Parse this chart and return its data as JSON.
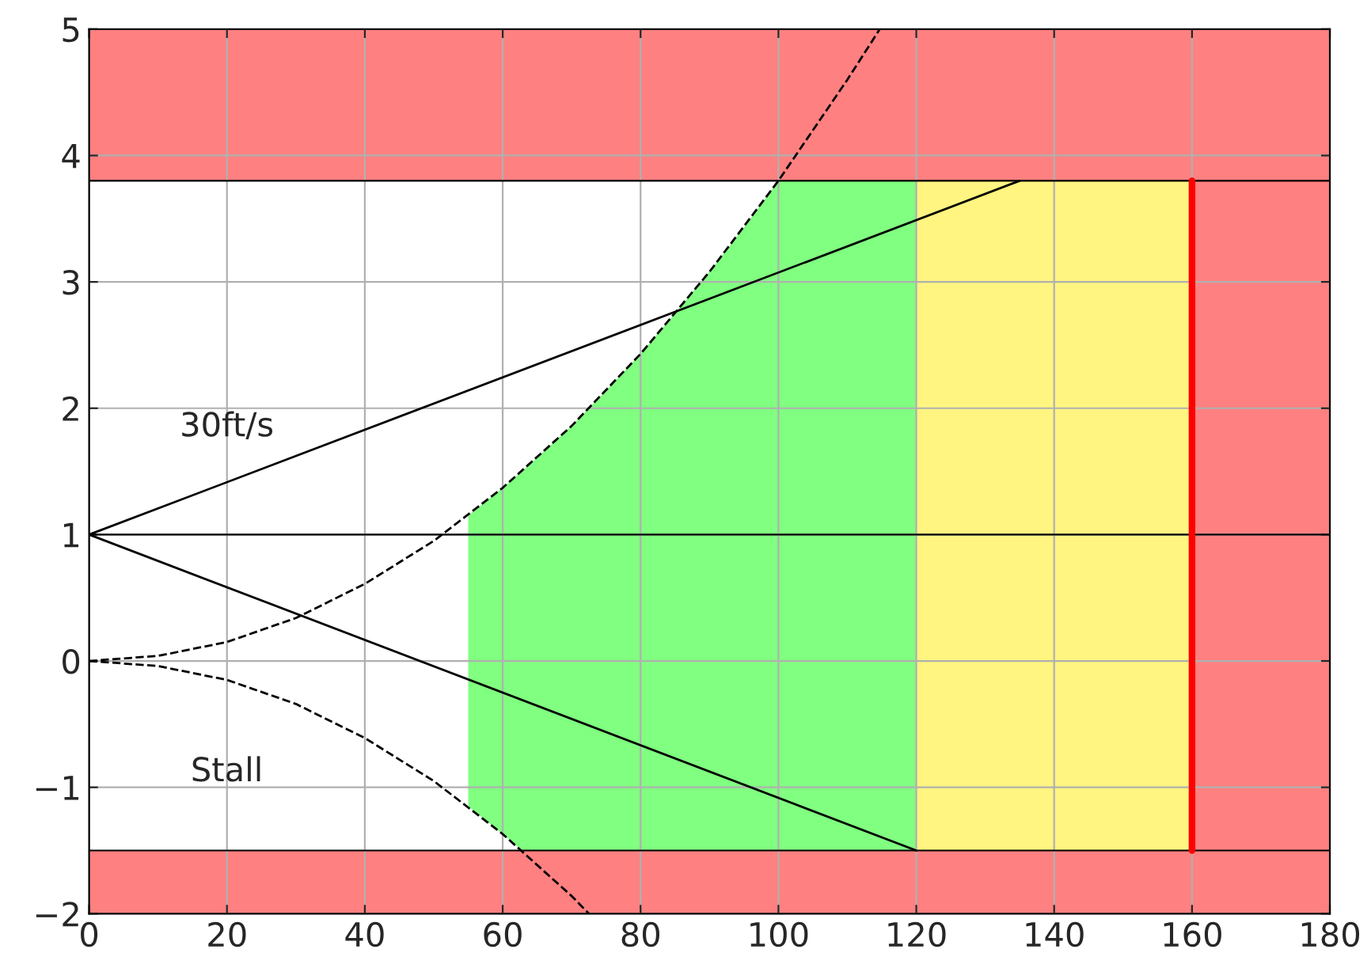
{
  "chart_data": {
    "type": "area",
    "xlim": [
      0,
      180
    ],
    "ylim": [
      -2,
      5
    ],
    "xticks": [
      0,
      20,
      40,
      60,
      80,
      100,
      120,
      140,
      160,
      180
    ],
    "yticks": [
      {
        "value": -2,
        "label": "−2"
      },
      {
        "value": -1,
        "label": "−1"
      },
      0,
      1,
      2,
      3,
      4,
      5
    ],
    "grid": true,
    "bands": [
      {
        "axis": "x",
        "from": 120,
        "to": 160,
        "color": "#fff580"
      },
      {
        "axis": "x",
        "from": 160,
        "to": 180,
        "color": "#ff8080"
      },
      {
        "axis": "y",
        "from": 3.8,
        "to": 5,
        "color": "#ff8080"
      },
      {
        "axis": "y",
        "from": -2,
        "to": -1.5,
        "color": "#ff8080"
      }
    ],
    "ref_lines": [
      {
        "axis": "y",
        "value": 1,
        "color": "#000000",
        "line_style": "solid"
      },
      {
        "axis": "y",
        "value": 3.8,
        "color": "#000000",
        "line_style": "solid"
      },
      {
        "axis": "y",
        "value": -1.5,
        "color": "#000000",
        "line_style": "solid"
      }
    ],
    "series": [
      {
        "color": "#80ff80",
        "x": [
          55,
          60,
          62.8,
          65,
          70,
          75,
          80,
          85,
          90,
          95,
          100,
          120
        ],
        "values": [
          1.15,
          1.37,
          1.5,
          1.61,
          1.86,
          2.14,
          2.43,
          2.75,
          3.08,
          3.43,
          3.8,
          3.8
        ]
      },
      {
        "color": "#80ff80",
        "x": [
          55,
          60,
          62.8,
          65,
          70,
          75,
          80,
          85,
          90,
          95,
          100,
          120
        ],
        "values": [
          -1.15,
          -1.37,
          -1.5,
          -1.5,
          -1.5,
          -1.5,
          -1.5,
          -1.5,
          -1.5,
          -1.5,
          -1.5,
          -1.5
        ]
      },
      {
        "type": "line",
        "color": "#000000",
        "line_style": "dashed",
        "x": [
          0,
          10,
          20,
          30,
          40,
          50,
          60,
          70,
          80,
          90,
          100,
          110,
          114.7
        ],
        "values": [
          0,
          0.04,
          0.15,
          0.34,
          0.61,
          0.95,
          1.37,
          1.86,
          2.43,
          3.08,
          3.8,
          4.6,
          5.0
        ]
      },
      {
        "type": "line",
        "color": "#000000",
        "line_style": "dashed",
        "x": [
          0,
          10,
          20,
          30,
          40,
          50,
          60,
          70,
          72.5
        ],
        "values": [
          0,
          -0.04,
          -0.15,
          -0.34,
          -0.61,
          -0.95,
          -1.37,
          -1.86,
          -2.0
        ]
      },
      {
        "type": "line",
        "color": "#000000",
        "line_style": "solid",
        "x": [
          0,
          135
        ],
        "values": [
          1,
          3.8
        ]
      },
      {
        "type": "line",
        "color": "#000000",
        "line_style": "solid",
        "x": [
          0,
          120
        ],
        "values": [
          1,
          -1.5
        ]
      },
      {
        "type": "line",
        "color": "#ff0000",
        "line_style": "solid",
        "x": [
          160,
          160
        ],
        "values": [
          -1.5,
          3.8
        ]
      }
    ],
    "annotations": [
      "30ft/s",
      "Stall"
    ]
  }
}
